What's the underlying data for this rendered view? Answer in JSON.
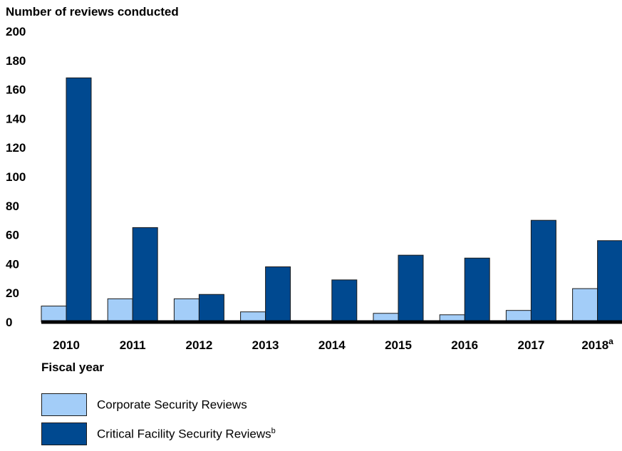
{
  "chart_data": {
    "type": "bar",
    "ylabel": "Number of reviews conducted",
    "xlabel": "Fiscal year",
    "ylim": [
      0,
      200
    ],
    "yticks": [
      0,
      20,
      40,
      60,
      80,
      100,
      120,
      140,
      160,
      180,
      200
    ],
    "categories": [
      "2010",
      "2011",
      "2012",
      "2013",
      "2014",
      "2015",
      "2016",
      "2017",
      "2018"
    ],
    "category_notes": [
      "",
      "",
      "",
      "",
      "",
      "",
      "",
      "",
      "a"
    ],
    "grid": false,
    "legend_position": "bottom-left",
    "series": [
      {
        "name": "Corporate Security Reviews",
        "note": "",
        "color": "#a3cdf8",
        "values": [
          11,
          16,
          16,
          7,
          0,
          6,
          5,
          8,
          23
        ]
      },
      {
        "name": "Critical Facility Security Reviews",
        "note": "b",
        "color": "#004990",
        "values": [
          168,
          65,
          19,
          38,
          29,
          46,
          44,
          70,
          56
        ]
      }
    ]
  }
}
